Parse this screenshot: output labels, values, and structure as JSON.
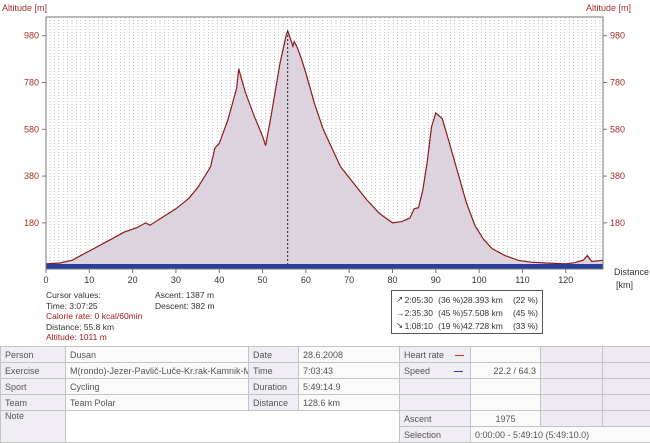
{
  "chart": {
    "ylabel_left": "Altitude [m]",
    "ylabel_right": "Altitude [m]",
    "xlabel": "Distance",
    "xunit": "[km]"
  },
  "chart_data": {
    "type": "area",
    "title": "",
    "xlabel": "Distance [km]",
    "ylabel": "Altitude [m]",
    "xlim": [
      0,
      128.6
    ],
    "ylim": [
      0,
      1060
    ],
    "xticks": [
      0,
      10,
      20,
      30,
      40,
      50,
      60,
      70,
      80,
      90,
      100,
      110,
      120
    ],
    "yticks": [
      180,
      380,
      580,
      780,
      980
    ],
    "grid": true,
    "cursor_x": 55.8,
    "x": [
      0,
      3,
      6,
      10,
      15,
      18,
      21,
      23,
      24,
      27,
      30,
      33,
      35,
      37,
      38,
      39,
      40,
      42,
      44,
      44.5,
      46,
      48,
      50,
      50.7,
      52,
      54,
      55.5,
      55.8,
      56.2,
      57,
      57.3,
      58,
      59,
      60,
      62,
      64,
      68,
      71,
      74,
      77,
      80,
      82,
      84,
      85,
      86,
      87,
      88,
      89,
      90,
      91.5,
      93,
      95,
      97,
      99,
      101,
      103,
      106,
      109,
      112,
      116,
      120,
      122,
      124,
      125,
      126,
      128.6
    ],
    "y": [
      5,
      8,
      20,
      60,
      110,
      140,
      160,
      180,
      170,
      205,
      240,
      285,
      330,
      390,
      420,
      500,
      520,
      620,
      755,
      838,
      740,
      640,
      550,
      510,
      640,
      860,
      985,
      1000,
      980,
      935,
      955,
      930,
      880,
      820,
      690,
      580,
      420,
      350,
      280,
      220,
      180,
      185,
      200,
      240,
      245,
      320,
      440,
      590,
      650,
      625,
      530,
      400,
      270,
      170,
      110,
      70,
      40,
      20,
      12,
      8,
      5,
      10,
      20,
      40,
      15,
      20
    ]
  },
  "cursor_values": {
    "header": "Cursor values:",
    "time": "Time: 3:07:25",
    "calorie": "Calorie rate: 0 kcal/60min",
    "distance": "Distance: 55.8 km",
    "altitude": "Altitude: 1011 m"
  },
  "totals": {
    "ascent": "Ascent: 1387 m",
    "descent": "Descent: 382 m"
  },
  "summary": [
    {
      "arrow": "↗",
      "time": "2:05:30",
      "tpct": "(36 %)",
      "dist": "28.393 km",
      "dpct": "(22 %)"
    },
    {
      "arrow": "→",
      "time": "2:35:30",
      "tpct": "(45 %)",
      "dist": "57.508 km",
      "dpct": "(45 %)"
    },
    {
      "arrow": "↘",
      "time": "1:08:10",
      "tpct": "(19 %)",
      "dist": "42.728 km",
      "dpct": "(33 %)"
    }
  ],
  "info": {
    "person_label": "Person",
    "person": "Dusan",
    "date_label": "Date",
    "date": "28.6.2008",
    "heart_label": "Heart rate",
    "exercise_label": "Exercise",
    "exercise": "M(rondo)-Jezer-Pavlič-Luče-Kr.rak-Kamnik-M",
    "time_label": "Time",
    "time": "7:03:43",
    "speed_label": "Speed",
    "speed": "22.2 / 64.3",
    "sport_label": "Sport",
    "sport": "Cycling",
    "duration_label": "Duration",
    "duration": "5:49:14.9",
    "team_label": "Team",
    "team": "Team Polar",
    "distance_label": "Distance",
    "distance": "128.6 km",
    "note_label": "Note",
    "ascent_label": "Ascent",
    "ascent": "1975",
    "selection_label": "Selection",
    "selection": "0:00:00 - 5:49:10 (5:49:10.0)"
  },
  "colors": {
    "profile_fill": "#ddd3df",
    "profile_line": "#8b1a1a",
    "axis_text": "#a0302a",
    "speed_bar": "#2a3f9c",
    "heart_legend": "#c0392b",
    "speed_legend": "#2a3fbf"
  }
}
